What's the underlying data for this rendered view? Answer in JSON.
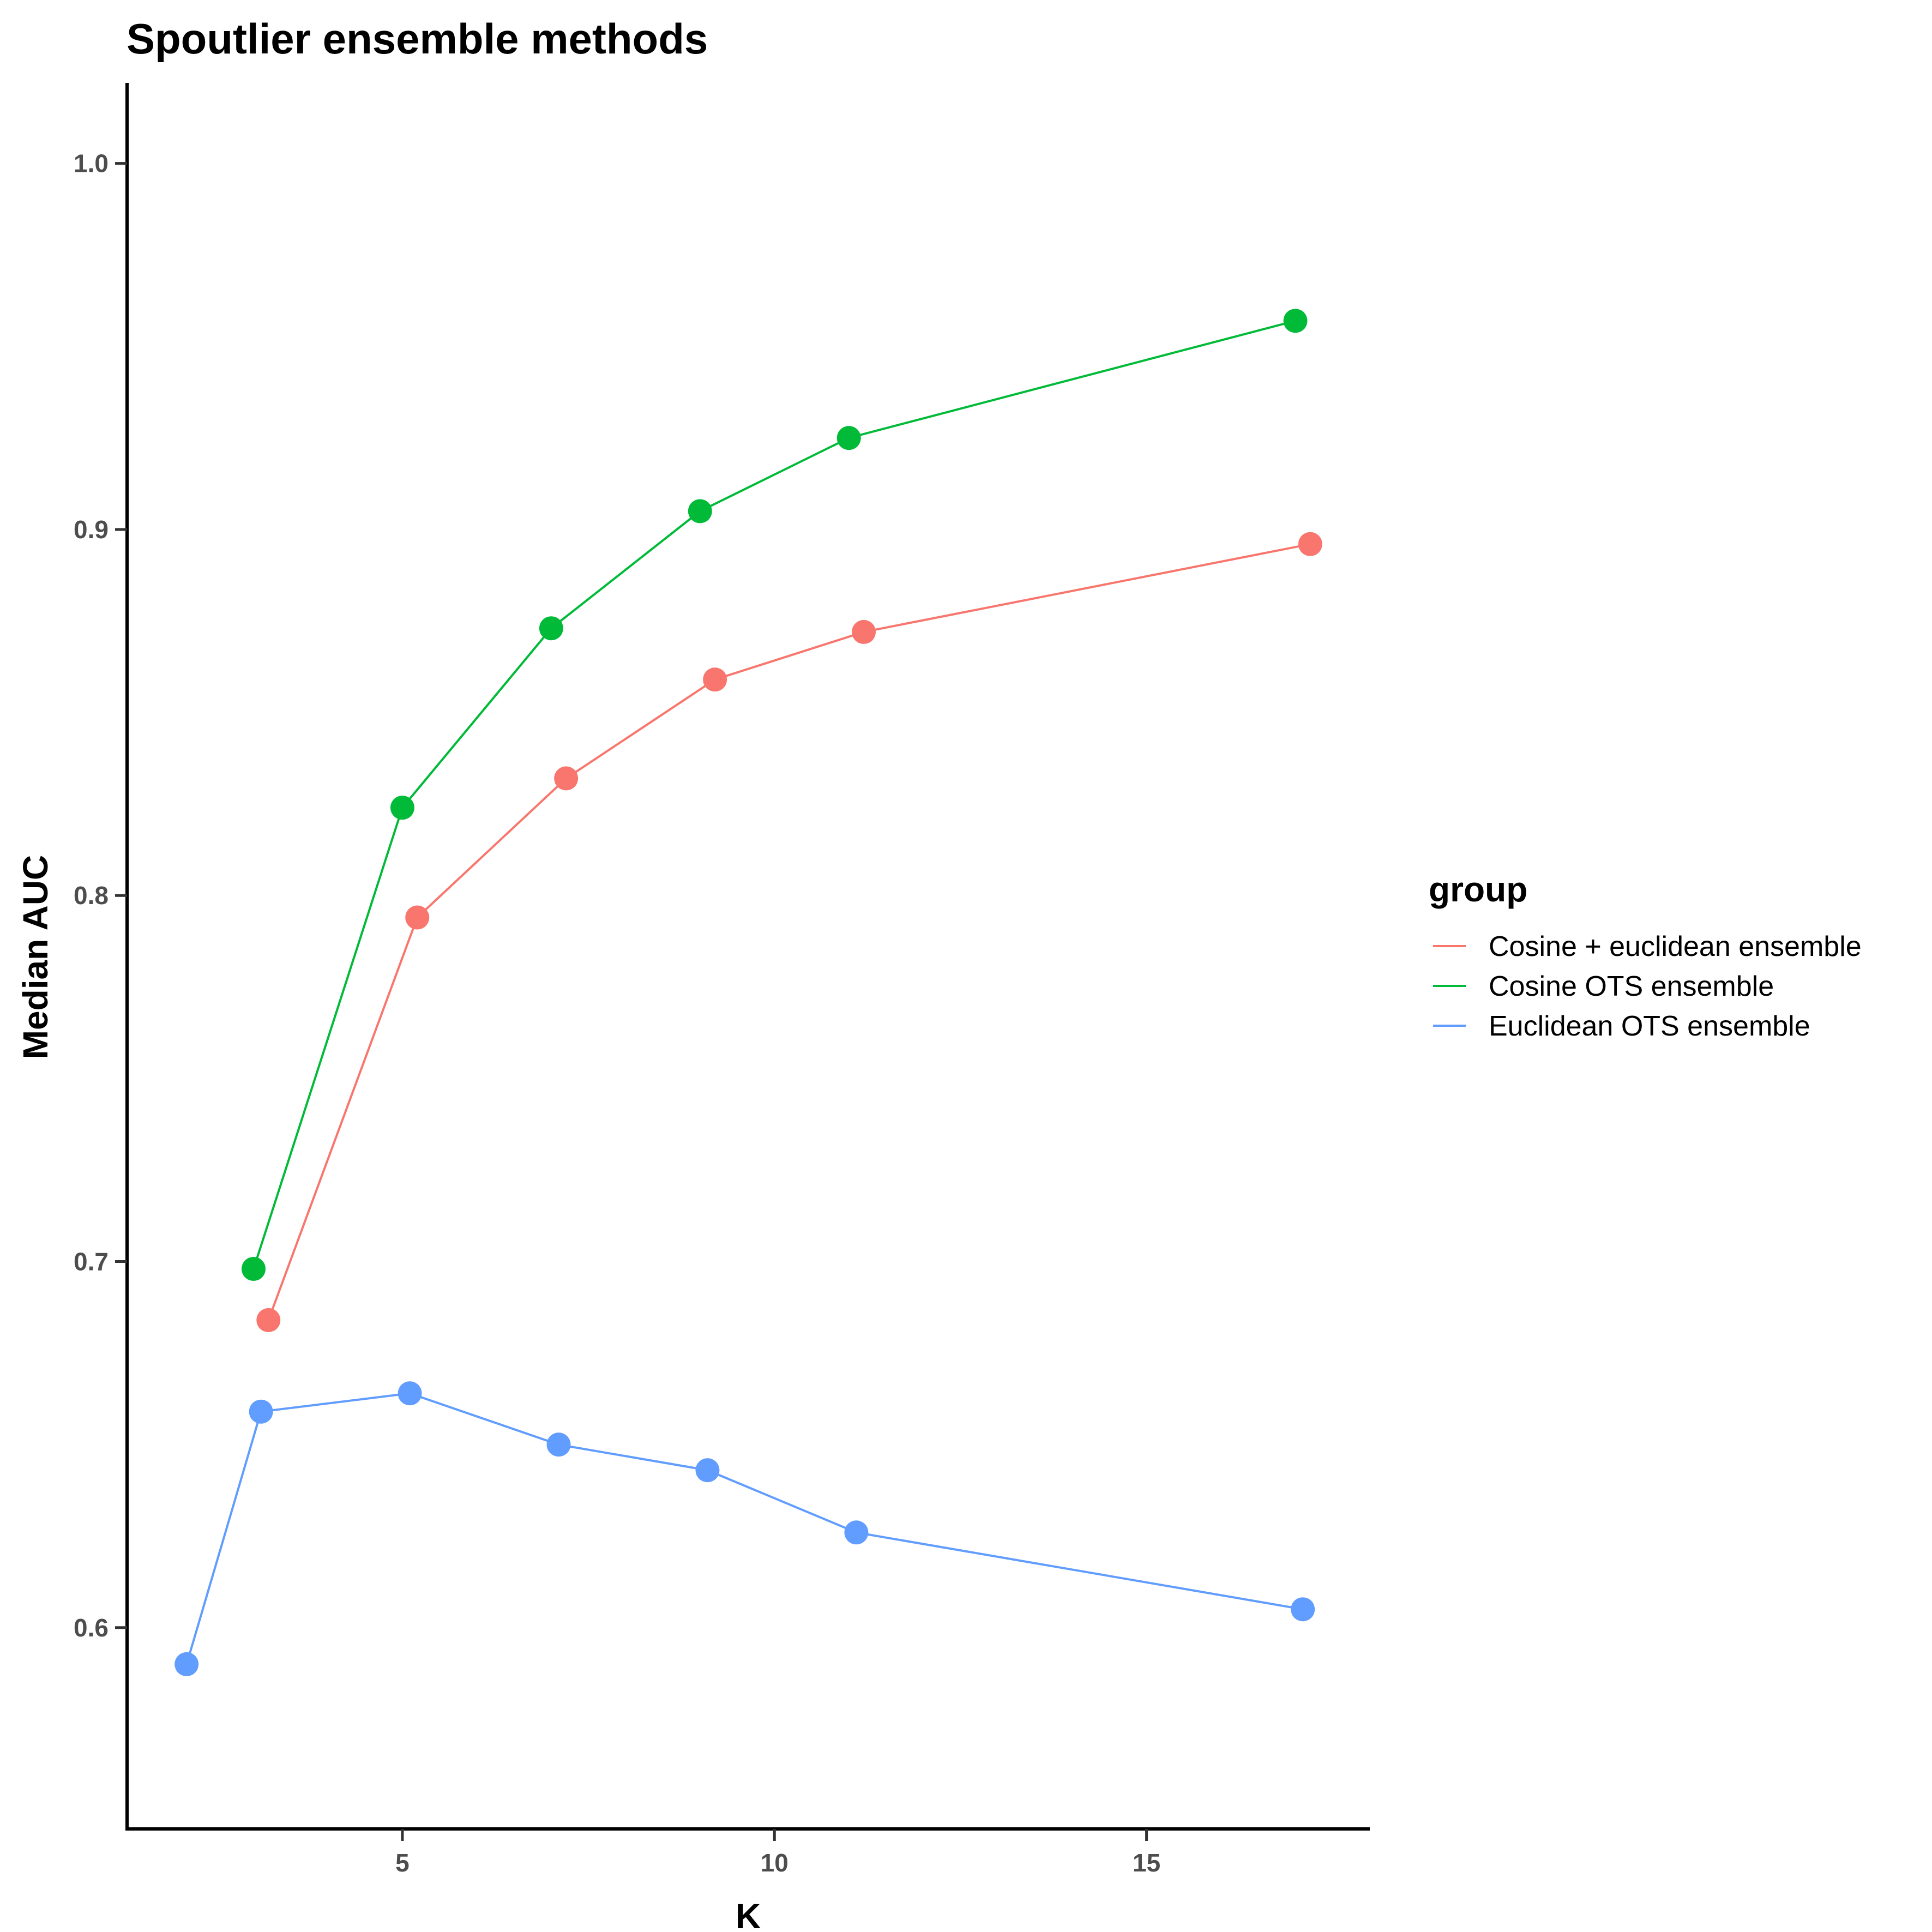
{
  "chart_data": {
    "type": "line",
    "title": "Spoutlier ensemble methods",
    "xlabel": "K",
    "ylabel": "Median AUC",
    "xlim": [
      1.3,
      18.0
    ],
    "ylim": [
      0.545,
      1.022
    ],
    "xticks": [
      5,
      10,
      15
    ],
    "yticks": [
      0.6,
      0.7,
      0.8,
      0.9,
      1.0
    ],
    "xtick_labels": [
      "5",
      "10",
      "15"
    ],
    "ytick_labels": [
      "0.6",
      "0.7",
      "0.8",
      "0.9",
      "1.0"
    ],
    "grid": false,
    "legend": {
      "title": "group",
      "position": "right"
    },
    "series": [
      {
        "name": "Cosine + euclidean ensemble",
        "color": "#F8766D",
        "points": [
          {
            "x": 3.2,
            "y": 0.684
          },
          {
            "x": 5.2,
            "y": 0.794
          },
          {
            "x": 7.2,
            "y": 0.832
          },
          {
            "x": 9.2,
            "y": 0.859
          },
          {
            "x": 11.2,
            "y": 0.872
          },
          {
            "x": 17.2,
            "y": 0.896
          }
        ]
      },
      {
        "name": "Cosine OTS ensemble",
        "color": "#00BA38",
        "points": [
          {
            "x": 3.0,
            "y": 0.698
          },
          {
            "x": 5.0,
            "y": 0.824
          },
          {
            "x": 7.0,
            "y": 0.873
          },
          {
            "x": 9.0,
            "y": 0.905
          },
          {
            "x": 11.0,
            "y": 0.925
          },
          {
            "x": 17.0,
            "y": 0.957
          }
        ]
      },
      {
        "name": "Euclidean OTS ensemble",
        "color": "#619CFF",
        "points": [
          {
            "x": 2.1,
            "y": 0.59
          },
          {
            "x": 3.1,
            "y": 0.659
          },
          {
            "x": 5.1,
            "y": 0.664
          },
          {
            "x": 7.1,
            "y": 0.65
          },
          {
            "x": 9.1,
            "y": 0.643
          },
          {
            "x": 11.1,
            "y": 0.626
          },
          {
            "x": 17.1,
            "y": 0.605
          }
        ]
      }
    ]
  }
}
